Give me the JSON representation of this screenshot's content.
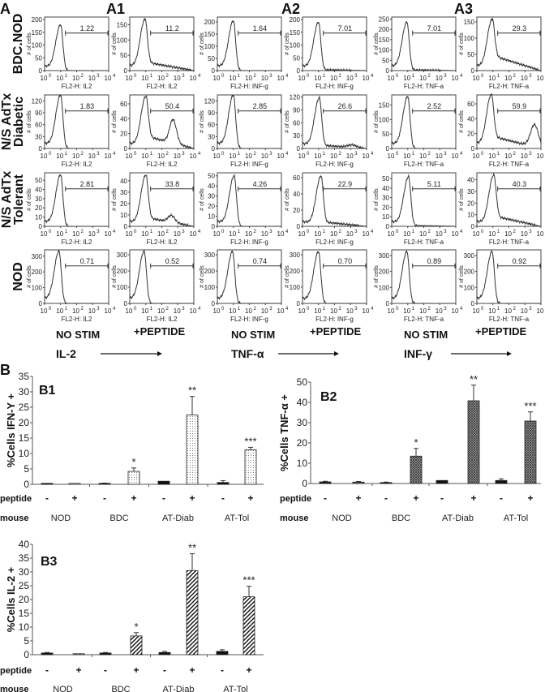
{
  "panel_labels": {
    "A": "A",
    "A1": "A1",
    "A2": "A2",
    "A3": "A3",
    "B": "B"
  },
  "row_labels": [
    [
      "BDC.NOD"
    ],
    [
      "N/S AdTx",
      "Diabetic"
    ],
    [
      "N/S AdTx",
      "Tolerant"
    ],
    [
      "NOD"
    ]
  ],
  "histogram_ylabel": "# of cells",
  "column_xlabels": [
    "FL2-H: IL2",
    "FL2-H: IL2",
    "FL2-H: INF-g",
    "FL2-H: INF-g",
    "FL2-H: TNF-a",
    "FL2-H: TNF-a"
  ],
  "x_tick_base": "10",
  "x_tick_exponents": [
    "0",
    "1",
    "2",
    "3",
    "4"
  ],
  "conditions": [
    {
      "stim": "NO STIM",
      "peptide": "+PEPTIDE",
      "cytokine": "IL-2"
    },
    {
      "stim": "NO STIM",
      "peptide": "+PEPTIDE",
      "cytokine": "TNF-α"
    },
    {
      "stim": "NO STIM",
      "peptide": "+PEPTIDE",
      "cytokine": "INF-γ"
    }
  ],
  "chart_data": [
    {
      "type": "histogram-grid",
      "x_scale": "log10",
      "xlim": [
        0,
        4
      ],
      "panels": [
        [
          {
            "gate": "1.22",
            "yticks": [
              0,
              50,
              100,
              150,
              200
            ],
            "ymax": 210,
            "peak": 180,
            "peak_log": 1.0,
            "tail": 0
          },
          {
            "gate": "11.2",
            "yticks": [
              0,
              50,
              100,
              150
            ],
            "ymax": 175,
            "peak": 168,
            "peak_log": 0.95,
            "tail": 25
          },
          {
            "gate": "1.64",
            "yticks": [
              0,
              50,
              100,
              150,
              200
            ],
            "ymax": 220,
            "peak": 205,
            "peak_log": 1.0,
            "tail": 0
          },
          {
            "gate": "7.01",
            "yticks": [
              0,
              50,
              100,
              150,
              200
            ],
            "ymax": 210,
            "peak": 190,
            "peak_log": 1.0,
            "tail": 3
          },
          {
            "gate": "7.01",
            "yticks": [
              0,
              50,
              100,
              150,
              200,
              250
            ],
            "ymax": 260,
            "peak": 235,
            "peak_log": 0.95,
            "tail": 3
          },
          {
            "gate": "29.3",
            "yticks": [
              0,
              50,
              100,
              150
            ],
            "ymax": 165,
            "peak": 158,
            "peak_log": 0.95,
            "tail": 42
          }
        ],
        [
          {
            "gate": "1.83",
            "yticks": [
              0,
              30,
              60,
              90,
              120
            ],
            "ymax": 135,
            "peak": 135,
            "peak_log": 1.0,
            "tail": 0
          },
          {
            "gate": "50.4",
            "yticks": [
              0,
              20,
              40,
              60
            ],
            "ymax": 72,
            "peak": 70,
            "peak_log": 1.0,
            "tail": 15,
            "hump": [
              2.7,
              32,
              0.3
            ]
          },
          {
            "gate": "2.85",
            "yticks": [
              0,
              30,
              60,
              90,
              120
            ],
            "ymax": 135,
            "peak": 135,
            "peak_log": 1.0,
            "tail": 0
          },
          {
            "gate": "26.6",
            "yticks": [
              0,
              30,
              60,
              90,
              120
            ],
            "ymax": 125,
            "peak": 118,
            "peak_log": 1.05,
            "tail": 7,
            "hump": [
              3.1,
              6,
              0.4
            ]
          },
          {
            "gate": "2.52",
            "yticks": [
              0,
              50,
              100,
              150
            ],
            "ymax": 185,
            "peak": 180,
            "peak_log": 1.0,
            "tail": 0
          },
          {
            "gate": "59.9",
            "yticks": [
              0,
              20,
              40,
              60
            ],
            "ymax": 72,
            "peak": 72,
            "peak_log": 0.9,
            "tail": 15,
            "hump": [
              3.6,
              30,
              0.35
            ]
          }
        ],
        [
          {
            "gate": "2.81",
            "yticks": [
              0,
              10,
              20,
              30,
              40,
              50
            ],
            "ymax": 58,
            "peak": 56,
            "peak_log": 1.0,
            "tail": 0
          },
          {
            "gate": "33.8",
            "yticks": [
              0,
              10,
              20,
              30,
              40
            ],
            "ymax": 47,
            "peak": 45,
            "peak_log": 1.0,
            "tail": 7,
            "hump": [
              2.6,
              6,
              0.3
            ]
          },
          {
            "gate": "4.26",
            "yticks": [
              0,
              10,
              20,
              30,
              40,
              50
            ],
            "ymax": 53,
            "peak": 50,
            "peak_log": 1.05,
            "tail": 0
          },
          {
            "gate": "22.9",
            "yticks": [
              0,
              20,
              40,
              60
            ],
            "ymax": 66,
            "peak": 62,
            "peak_log": 1.15,
            "tail": 5
          },
          {
            "gate": "5.11",
            "yticks": [
              0,
              10,
              20,
              30,
              40,
              50
            ],
            "ymax": 56,
            "peak": 52,
            "peak_log": 1.05,
            "tail": 1
          },
          {
            "gate": "40.3",
            "yticks": [
              0,
              10,
              20,
              30,
              40
            ],
            "ymax": 46,
            "peak": 44,
            "peak_log": 1.05,
            "tail": 8
          }
        ],
        [
          {
            "gate": "0.71",
            "yticks": [
              0,
              100,
              200,
              300
            ],
            "ymax": 340,
            "peak": 330,
            "peak_log": 0.9,
            "tail": 0
          },
          {
            "gate": "0.52",
            "yticks": [
              0,
              100,
              200,
              300
            ],
            "ymax": 330,
            "peak": 320,
            "peak_log": 0.9,
            "tail": 0
          },
          {
            "gate": "0.74",
            "yticks": [
              0,
              100,
              200,
              300
            ],
            "ymax": 330,
            "peak": 320,
            "peak_log": 0.95,
            "tail": 0
          },
          {
            "gate": "0.70",
            "yticks": [
              0,
              100,
              200,
              300
            ],
            "ymax": 330,
            "peak": 320,
            "peak_log": 1.0,
            "tail": 0
          },
          {
            "gate": "0.89",
            "yticks": [
              0,
              100,
              200,
              300
            ],
            "ymax": 335,
            "peak": 325,
            "peak_log": 0.95,
            "tail": 0
          },
          {
            "gate": "0.92",
            "yticks": [
              0,
              100,
              200,
              300
            ],
            "ymax": 335,
            "peak": 325,
            "peak_log": 0.95,
            "tail": 0
          }
        ]
      ]
    },
    {
      "type": "bar",
      "title": "B1",
      "ylabel": "%Cells IFN-Y +",
      "ylim": [
        0,
        35
      ],
      "yticks": [
        0,
        5,
        10,
        15,
        20,
        25,
        30,
        35
      ],
      "pattern": "dots",
      "values": [
        0.2,
        0.2,
        0.3,
        4.2,
        1.0,
        22.5,
        0.6,
        11.2
      ],
      "errors": [
        0,
        0,
        0.1,
        1.1,
        0,
        6.0,
        0.6,
        0.8
      ],
      "significance": [
        "",
        "",
        "",
        "*",
        "",
        "**",
        "",
        "***"
      ],
      "peptide": [
        "-",
        "+",
        "-",
        "+",
        "-",
        "+",
        "-",
        "+"
      ],
      "mouse": [
        "NOD",
        "BDC",
        "AT-Diab",
        "AT-Tol"
      ]
    },
    {
      "type": "bar",
      "title": "B2",
      "ylabel": "%Cells TNF-α +",
      "ylim": [
        0,
        50
      ],
      "yticks": [
        0,
        10,
        20,
        30,
        40,
        50
      ],
      "pattern": "crosshatch",
      "values": [
        0.8,
        0.7,
        0.4,
        13.5,
        1.5,
        40.8,
        1.5,
        30.8
      ],
      "errors": [
        0.3,
        0.3,
        0.3,
        3.8,
        0,
        7.7,
        0.8,
        4.5
      ],
      "significance": [
        "",
        "",
        "",
        "*",
        "",
        "**",
        "",
        "***"
      ],
      "peptide": [
        "-",
        "+",
        "-",
        "+",
        "-",
        "+",
        "-",
        "+"
      ],
      "mouse": [
        "NOD",
        "BDC",
        "AT-Diab",
        "AT-Tol"
      ]
    },
    {
      "type": "bar",
      "title": "B3",
      "ylabel": "%Cells IL-2 +",
      "ylim": [
        0,
        40
      ],
      "yticks": [
        0,
        5,
        10,
        15,
        20,
        25,
        30,
        35,
        40
      ],
      "pattern": "stripes",
      "values": [
        0.6,
        0.2,
        0.6,
        6.8,
        0.8,
        30.5,
        1.2,
        21.0
      ],
      "errors": [
        0.2,
        0,
        0.2,
        1.2,
        0.4,
        6.1,
        0.6,
        3.8
      ],
      "significance": [
        "",
        "",
        "",
        "*",
        "",
        "**",
        "",
        "***"
      ],
      "peptide": [
        "-",
        "+",
        "-",
        "+",
        "-",
        "+",
        "-",
        "+"
      ],
      "mouse": [
        "NOD",
        "BDC",
        "AT-Diab",
        "AT-Tol"
      ]
    }
  ],
  "row_header_peptide": "peptide",
  "row_header_mouse": "mouse"
}
